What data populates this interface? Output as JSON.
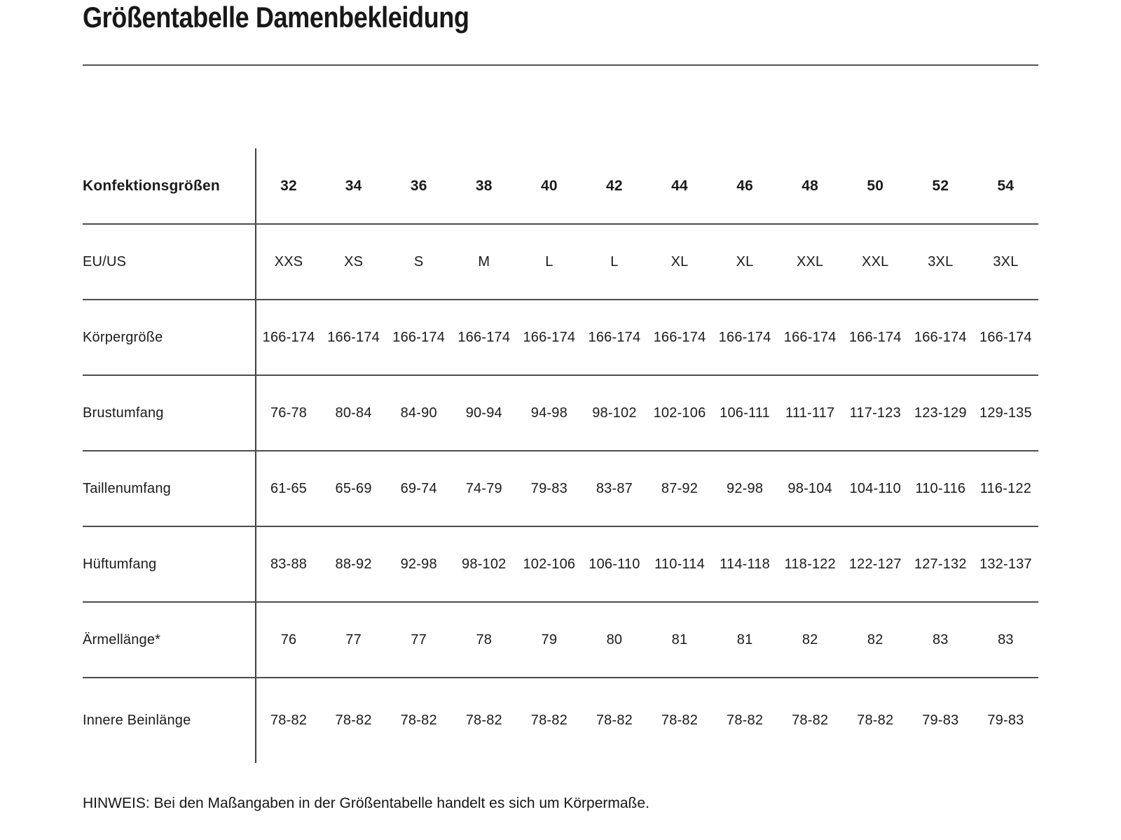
{
  "page": {
    "title": "Größentabelle Damenbekleidung",
    "note": "HINWEIS: Bei den Maßangaben in der Größentabelle handelt es sich um Körpermaße."
  },
  "colors": {
    "text": "#1b1b1b",
    "rule": "#555555",
    "divider": "#3f3f3f",
    "background": "#ffffff"
  },
  "table": {
    "rows": [
      {
        "label": "Konfektionsgrößen",
        "bold": true,
        "values": [
          "32",
          "34",
          "36",
          "38",
          "40",
          "42",
          "44",
          "46",
          "48",
          "50",
          "52",
          "54"
        ]
      },
      {
        "label": "EU/US",
        "bold": false,
        "values": [
          "XXS",
          "XS",
          "S",
          "M",
          "L",
          "L",
          "XL",
          "XL",
          "XXL",
          "XXL",
          "3XL",
          "3XL"
        ]
      },
      {
        "label": "Körpergröße",
        "bold": false,
        "values": [
          "166-174",
          "166-174",
          "166-174",
          "166-174",
          "166-174",
          "166-174",
          "166-174",
          "166-174",
          "166-174",
          "166-174",
          "166-174",
          "166-174"
        ]
      },
      {
        "label": "Brustumfang",
        "bold": false,
        "values": [
          "76-78",
          "80-84",
          "84-90",
          "90-94",
          "94-98",
          "98-102",
          "102-106",
          "106-111",
          "111-117",
          "117-123",
          "123-129",
          "129-135"
        ]
      },
      {
        "label": "Taillenumfang",
        "bold": false,
        "values": [
          "61-65",
          "65-69",
          "69-74",
          "74-79",
          "79-83",
          "83-87",
          "87-92",
          "92-98",
          "98-104",
          "104-110",
          "110-116",
          "116-122"
        ]
      },
      {
        "label": "Hüftumfang",
        "bold": false,
        "values": [
          "83-88",
          "88-92",
          "92-98",
          "98-102",
          "102-106",
          "106-110",
          "110-114",
          "114-118",
          "118-122",
          "122-127",
          "127-132",
          "132-137"
        ]
      },
      {
        "label": "Ärmellänge*",
        "bold": false,
        "values": [
          "76",
          "77",
          "77",
          "78",
          "79",
          "80",
          "81",
          "81",
          "82",
          "82",
          "83",
          "83"
        ]
      },
      {
        "label": "Innere Beinlänge",
        "bold": false,
        "values": [
          "78-82",
          "78-82",
          "78-82",
          "78-82",
          "78-82",
          "78-82",
          "78-82",
          "78-82",
          "78-82",
          "78-82",
          "79-83",
          "79-83"
        ]
      }
    ]
  }
}
